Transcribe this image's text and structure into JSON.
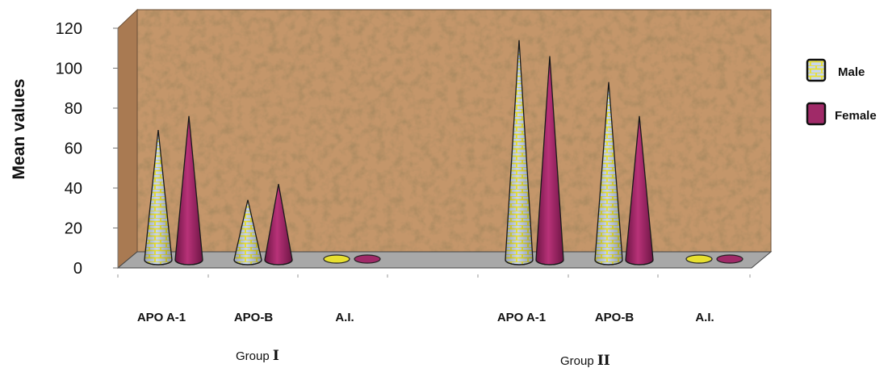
{
  "chart_data": {
    "type": "bar",
    "bar_shape": "cone",
    "ylabel": "Mean values",
    "ylim": [
      0,
      120
    ],
    "yticks": [
      0,
      20,
      40,
      60,
      80,
      100,
      120
    ],
    "categories": [
      "APO A-1",
      "APO-B",
      "A.I.",
      "APO A-1",
      "APO-B",
      "A.I."
    ],
    "groups": [
      {
        "label": "Group",
        "numeral": "I",
        "category_indices": [
          0,
          1,
          2
        ]
      },
      {
        "label": "Group",
        "numeral": "II",
        "category_indices": [
          3,
          4,
          5
        ]
      }
    ],
    "series": [
      {
        "name": "Male",
        "values": [
          65,
          30,
          1.5,
          110,
          89,
          1.5
        ],
        "color": "#c8d6f0",
        "pattern": "brick-yellow"
      },
      {
        "name": "Female",
        "values": [
          72,
          38,
          1.5,
          102,
          72,
          1.5
        ],
        "color": "#a02a68"
      }
    ],
    "legend_position": "right",
    "background": "cork-texture",
    "colors": {
      "wall": "#c4966a",
      "floor": "#a8a8a8",
      "male_stripe": "#e8e030",
      "female": "#a02a68"
    }
  }
}
